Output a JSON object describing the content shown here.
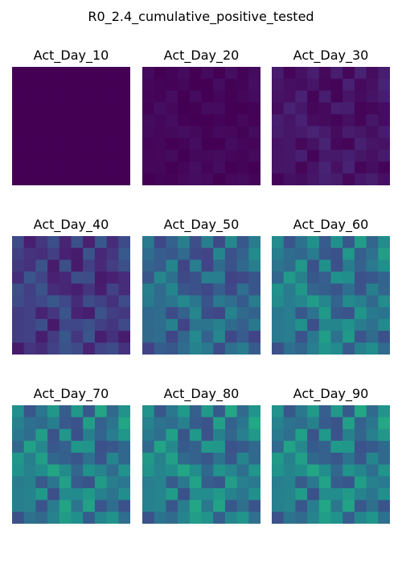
{
  "chart_data": {
    "type": "heatmap",
    "title": "R0_2.4_cumulative_positive_tested",
    "colormap": "viridis",
    "grid": false,
    "axes": "off",
    "grid_size": [
      10,
      10
    ],
    "panels": [
      {
        "label": "Act_Day_10",
        "base": 0.0,
        "spread": 0.0
      },
      {
        "label": "Act_Day_20",
        "base": 0.02,
        "spread": 0.03
      },
      {
        "label": "Act_Day_30",
        "base": 0.07,
        "spread": 0.06
      },
      {
        "label": "Act_Day_40",
        "base": 0.22,
        "spread": 0.13
      },
      {
        "label": "Act_Day_50",
        "base": 0.42,
        "spread": 0.18
      },
      {
        "label": "Act_Day_60",
        "base": 0.5,
        "spread": 0.2
      },
      {
        "label": "Act_Day_70",
        "base": 0.52,
        "spread": 0.22
      },
      {
        "label": "Act_Day_80",
        "base": 0.53,
        "spread": 0.22
      },
      {
        "label": "Act_Day_90",
        "base": 0.53,
        "spread": 0.22
      }
    ]
  }
}
